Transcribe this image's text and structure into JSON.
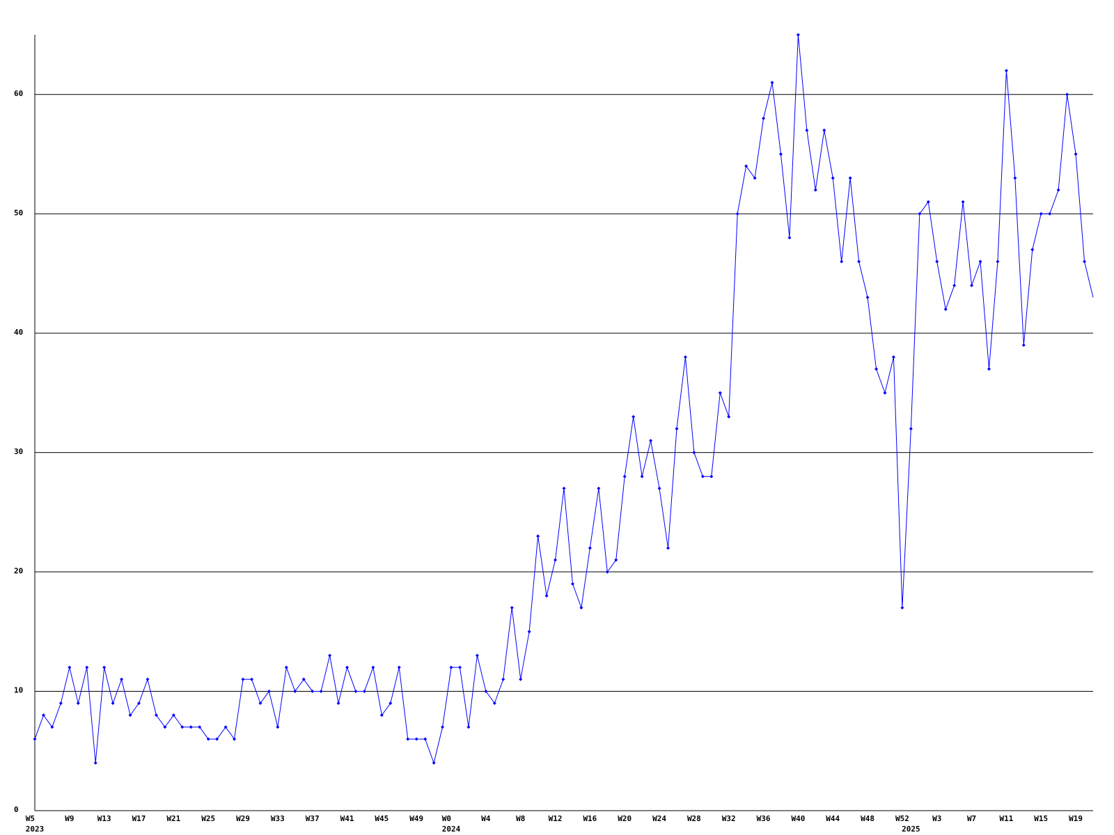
{
  "chart_data": {
    "type": "line",
    "color": "#0000ff",
    "grid": true,
    "categories": [
      "W5\n2023",
      null,
      null,
      null,
      "W9",
      null,
      null,
      null,
      "W13",
      null,
      null,
      null,
      "W17",
      null,
      null,
      null,
      "W21",
      null,
      null,
      null,
      "W25",
      null,
      null,
      null,
      "W29",
      null,
      null,
      null,
      "W33",
      null,
      null,
      null,
      "W37",
      null,
      null,
      null,
      "W41",
      null,
      null,
      null,
      "W45",
      null,
      null,
      null,
      "W49",
      null,
      null,
      null,
      "W0\n2024",
      null,
      null,
      null,
      "W4",
      null,
      null,
      null,
      "W8",
      null,
      null,
      null,
      "W12",
      null,
      null,
      null,
      "W16",
      null,
      null,
      null,
      "W20",
      null,
      null,
      null,
      "W24",
      null,
      null,
      null,
      "W28",
      null,
      null,
      null,
      "W32",
      null,
      null,
      null,
      "W36",
      null,
      null,
      null,
      "W40",
      null,
      null,
      null,
      "W44",
      null,
      null,
      null,
      "W48",
      null,
      null,
      null,
      "W52",
      "\n2025",
      null,
      null,
      "W3",
      null,
      null,
      null,
      "W7",
      null,
      null,
      null,
      "W11",
      null,
      null,
      null,
      "W15",
      null,
      null,
      null,
      "W19",
      null,
      null
    ],
    "values": [
      6,
      8,
      7,
      9,
      12,
      9,
      12,
      4,
      12,
      9,
      11,
      8,
      9,
      11,
      8,
      7,
      8,
      7,
      7,
      7,
      6,
      6,
      7,
      6,
      11,
      11,
      9,
      10,
      7,
      12,
      10,
      11,
      10,
      10,
      13,
      9,
      12,
      10,
      10,
      12,
      8,
      9,
      12,
      6,
      6,
      6,
      4,
      7,
      12,
      12,
      7,
      13,
      10,
      9,
      11,
      17,
      11,
      15,
      23,
      18,
      21,
      27,
      19,
      17,
      22,
      27,
      20,
      21,
      28,
      33,
      28,
      31,
      27,
      22,
      32,
      38,
      30,
      28,
      28,
      35,
      33,
      50,
      54,
      53,
      58,
      61,
      55,
      48,
      65,
      57,
      52,
      57,
      53,
      46,
      53,
      46,
      43,
      37,
      35,
      38,
      17,
      32,
      50,
      51,
      46,
      42,
      44,
      51,
      44,
      46,
      37,
      46,
      62,
      53,
      39,
      47,
      50,
      50,
      52,
      60,
      55,
      46,
      43
    ],
    "ylim": [
      0,
      65
    ],
    "yticks": [
      0,
      10,
      20,
      30,
      40,
      50,
      60
    ]
  }
}
